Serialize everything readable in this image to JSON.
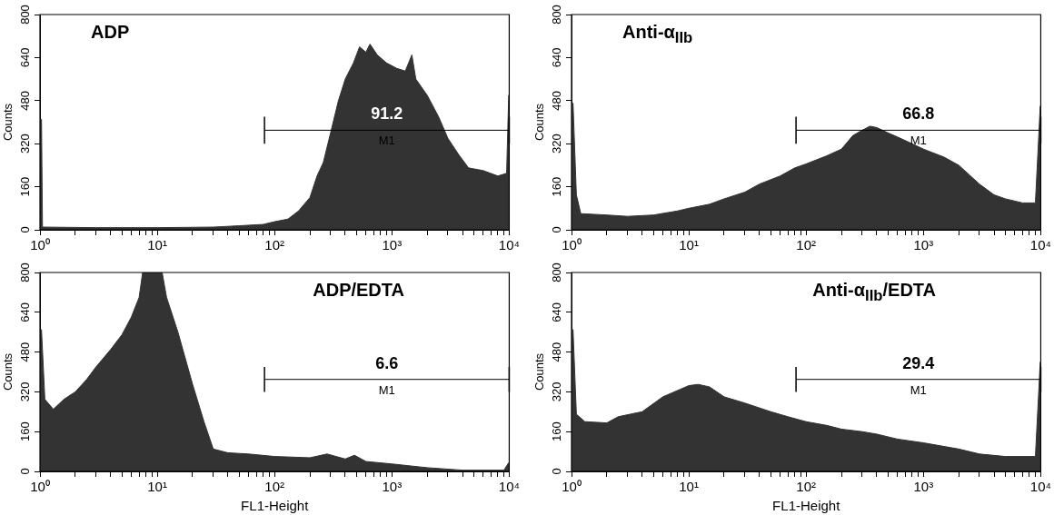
{
  "chart_data": [
    {
      "type": "area",
      "title": "ADP",
      "ylabel": "Counts",
      "log": "x",
      "xlim": [
        1,
        10000
      ],
      "ylim": [
        0,
        800
      ],
      "xticks": [
        {
          "value": 1,
          "label": "10⁰"
        },
        {
          "value": 2,
          "label": null
        },
        {
          "value": 3,
          "label": null
        },
        {
          "value": 4,
          "label": null
        },
        {
          "value": 5,
          "label": null
        },
        {
          "value": 6,
          "label": null
        },
        {
          "value": 7,
          "label": null
        },
        {
          "value": 8,
          "label": null
        },
        {
          "value": 9,
          "label": null
        },
        {
          "value": 10,
          "label": "10¹"
        },
        {
          "value": 20,
          "label": null
        },
        {
          "value": 30,
          "label": null
        },
        {
          "value": 40,
          "label": null
        },
        {
          "value": 50,
          "label": null
        },
        {
          "value": 60,
          "label": null
        },
        {
          "value": 70,
          "label": null
        },
        {
          "value": 80,
          "label": null
        },
        {
          "value": 90,
          "label": null
        },
        {
          "value": 100,
          "label": "10²"
        },
        {
          "value": 200,
          "label": null
        },
        {
          "value": 300,
          "label": null
        },
        {
          "value": 400,
          "label": null
        },
        {
          "value": 500,
          "label": null
        },
        {
          "value": 600,
          "label": null
        },
        {
          "value": 700,
          "label": null
        },
        {
          "value": 800,
          "label": null
        },
        {
          "value": 900,
          "label": null
        },
        {
          "value": 1000,
          "label": "10³"
        },
        {
          "value": 2000,
          "label": null
        },
        {
          "value": 3000,
          "label": null
        },
        {
          "value": 4000,
          "label": null
        },
        {
          "value": 5000,
          "label": null
        },
        {
          "value": 6000,
          "label": null
        },
        {
          "value": 7000,
          "label": null
        },
        {
          "value": 8000,
          "label": null
        },
        {
          "value": 9000,
          "label": null
        },
        {
          "value": 10000,
          "label": "10⁴"
        }
      ],
      "yticks": [
        0,
        160,
        320,
        480,
        640,
        800
      ],
      "series": [
        {
          "color": "#333333",
          "x": [
            1,
            1.03,
            1.05,
            3,
            10,
            30,
            50,
            80,
            100,
            130,
            160,
            200,
            230,
            260,
            300,
            350,
            400,
            470,
            530,
            600,
            650,
            750,
            900,
            1100,
            1300,
            1480,
            1600,
            2000,
            2500,
            3000,
            3700,
            4500,
            6000,
            8000,
            9500,
            9900,
            10000
          ],
          "values": [
            410,
            410,
            10,
            8,
            8,
            10,
            15,
            20,
            30,
            40,
            70,
            120,
            200,
            250,
            360,
            480,
            560,
            620,
            680,
            660,
            690,
            650,
            620,
            600,
            590,
            650,
            560,
            500,
            420,
            340,
            280,
            230,
            220,
            200,
            210,
            500,
            500
          ]
        },
        {
          "type": "line",
          "name": "M1",
          "color": "#000000",
          "x": [
            82,
            10000
          ],
          "values": [
            370,
            370
          ],
          "errors": [
            50,
            50
          ]
        }
      ],
      "annotations": [
        "91.2"
      ]
    },
    {
      "type": "area",
      "title": "Anti-α$_{IIb}$",
      "ylabel": "Counts",
      "log": "x",
      "xlim": [
        1,
        10000
      ],
      "ylim": [
        0,
        800
      ],
      "xticks": [
        {
          "value": 1,
          "label": "10⁰"
        },
        {
          "value": 2,
          "label": null
        },
        {
          "value": 3,
          "label": null
        },
        {
          "value": 4,
          "label": null
        },
        {
          "value": 5,
          "label": null
        },
        {
          "value": 6,
          "label": null
        },
        {
          "value": 7,
          "label": null
        },
        {
          "value": 8,
          "label": null
        },
        {
          "value": 9,
          "label": null
        },
        {
          "value": 10,
          "label": "10¹"
        },
        {
          "value": 20,
          "label": null
        },
        {
          "value": 30,
          "label": null
        },
        {
          "value": 40,
          "label": null
        },
        {
          "value": 50,
          "label": null
        },
        {
          "value": 60,
          "label": null
        },
        {
          "value": 70,
          "label": null
        },
        {
          "value": 80,
          "label": null
        },
        {
          "value": 90,
          "label": null
        },
        {
          "value": 100,
          "label": "10²"
        },
        {
          "value": 200,
          "label": null
        },
        {
          "value": 300,
          "label": null
        },
        {
          "value": 400,
          "label": null
        },
        {
          "value": 500,
          "label": null
        },
        {
          "value": 600,
          "label": null
        },
        {
          "value": 700,
          "label": null
        },
        {
          "value": 800,
          "label": null
        },
        {
          "value": 900,
          "label": null
        },
        {
          "value": 1000,
          "label": "10³"
        },
        {
          "value": 2000,
          "label": null
        },
        {
          "value": 3000,
          "label": null
        },
        {
          "value": 4000,
          "label": null
        },
        {
          "value": 5000,
          "label": null
        },
        {
          "value": 6000,
          "label": null
        },
        {
          "value": 7000,
          "label": null
        },
        {
          "value": 8000,
          "label": null
        },
        {
          "value": 9000,
          "label": null
        },
        {
          "value": 10000,
          "label": "10⁴"
        }
      ],
      "yticks": [
        0,
        160,
        320,
        480,
        640,
        800
      ],
      "series": [
        {
          "color": "#333333",
          "x": [
            1,
            1.03,
            1.1,
            1.2,
            2,
            3,
            5,
            8,
            10,
            15,
            20,
            30,
            40,
            60,
            80,
            100,
            150,
            200,
            250,
            300,
            350,
            400,
            500,
            600,
            800,
            1000,
            1500,
            2000,
            3000,
            4000,
            5000,
            7000,
            9000,
            9900,
            10000
          ],
          "values": [
            470,
            470,
            130,
            60,
            55,
            50,
            55,
            70,
            80,
            95,
            115,
            140,
            170,
            200,
            230,
            245,
            275,
            300,
            350,
            370,
            385,
            380,
            360,
            345,
            320,
            300,
            270,
            240,
            170,
            130,
            115,
            100,
            100,
            460,
            460
          ]
        },
        {
          "type": "line",
          "name": "M1",
          "color": "#000000",
          "x": [
            82,
            10000
          ],
          "values": [
            370,
            370
          ],
          "errors": [
            50,
            50
          ]
        }
      ],
      "annotations": [
        "66.8"
      ]
    },
    {
      "type": "area",
      "title": "ADP/EDTA",
      "xlabel": "FL1-Height",
      "ylabel": "Counts",
      "log": "x",
      "xlim": [
        1,
        10000
      ],
      "ylim": [
        0,
        800
      ],
      "xticks": [
        {
          "value": 1,
          "label": "10⁰"
        },
        {
          "value": 2,
          "label": null
        },
        {
          "value": 3,
          "label": null
        },
        {
          "value": 4,
          "label": null
        },
        {
          "value": 5,
          "label": null
        },
        {
          "value": 6,
          "label": null
        },
        {
          "value": 7,
          "label": null
        },
        {
          "value": 8,
          "label": null
        },
        {
          "value": 9,
          "label": null
        },
        {
          "value": 10,
          "label": "10¹"
        },
        {
          "value": 20,
          "label": null
        },
        {
          "value": 30,
          "label": null
        },
        {
          "value": 40,
          "label": null
        },
        {
          "value": 50,
          "label": null
        },
        {
          "value": 60,
          "label": null
        },
        {
          "value": 70,
          "label": null
        },
        {
          "value": 80,
          "label": null
        },
        {
          "value": 90,
          "label": null
        },
        {
          "value": 100,
          "label": "10²"
        },
        {
          "value": 200,
          "label": null
        },
        {
          "value": 300,
          "label": null
        },
        {
          "value": 400,
          "label": null
        },
        {
          "value": 500,
          "label": null
        },
        {
          "value": 600,
          "label": null
        },
        {
          "value": 700,
          "label": null
        },
        {
          "value": 800,
          "label": null
        },
        {
          "value": 900,
          "label": null
        },
        {
          "value": 1000,
          "label": "10³"
        },
        {
          "value": 2000,
          "label": null
        },
        {
          "value": 3000,
          "label": null
        },
        {
          "value": 4000,
          "label": null
        },
        {
          "value": 5000,
          "label": null
        },
        {
          "value": 6000,
          "label": null
        },
        {
          "value": 7000,
          "label": null
        },
        {
          "value": 8000,
          "label": null
        },
        {
          "value": 9000,
          "label": null
        },
        {
          "value": 10000,
          "label": "10⁴"
        }
      ],
      "yticks": [
        0,
        160,
        320,
        480,
        640,
        800
      ],
      "series": [
        {
          "color": "#333333",
          "x": [
            1,
            1.03,
            1.1,
            1.3,
            1.6,
            2,
            2.5,
            3,
            4,
            5,
            6,
            7,
            7.5,
            10,
            11,
            12,
            15,
            20,
            25,
            30,
            40,
            60,
            100,
            200,
            280,
            400,
            480,
            600,
            1000,
            2000,
            4000,
            9000,
            9900,
            10000
          ],
          "values": [
            570,
            570,
            290,
            250,
            290,
            320,
            370,
            420,
            490,
            550,
            620,
            700,
            800,
            800,
            800,
            700,
            560,
            350,
            200,
            90,
            75,
            70,
            60,
            55,
            70,
            50,
            65,
            40,
            30,
            15,
            5,
            5,
            35,
            35
          ]
        },
        {
          "type": "line",
          "name": "M1",
          "color": "#000000",
          "x": [
            82,
            10000
          ],
          "values": [
            370,
            370
          ],
          "errors": [
            50,
            50
          ]
        }
      ],
      "annotations": [
        "6.6"
      ]
    },
    {
      "type": "area",
      "title": "Anti-α$_{IIb}$/EDTA",
      "xlabel": "FL1-Height",
      "ylabel": "Counts",
      "log": "x",
      "xlim": [
        1,
        10000
      ],
      "ylim": [
        0,
        800
      ],
      "xticks": [
        {
          "value": 1,
          "label": "10⁰"
        },
        {
          "value": 2,
          "label": null
        },
        {
          "value": 3,
          "label": null
        },
        {
          "value": 4,
          "label": null
        },
        {
          "value": 5,
          "label": null
        },
        {
          "value": 6,
          "label": null
        },
        {
          "value": 7,
          "label": null
        },
        {
          "value": 8,
          "label": null
        },
        {
          "value": 9,
          "label": null
        },
        {
          "value": 10,
          "label": "10¹"
        },
        {
          "value": 20,
          "label": null
        },
        {
          "value": 30,
          "label": null
        },
        {
          "value": 40,
          "label": null
        },
        {
          "value": 50,
          "label": null
        },
        {
          "value": 60,
          "label": null
        },
        {
          "value": 70,
          "label": null
        },
        {
          "value": 80,
          "label": null
        },
        {
          "value": 90,
          "label": null
        },
        {
          "value": 100,
          "label": "10²"
        },
        {
          "value": 200,
          "label": null
        },
        {
          "value": 300,
          "label": null
        },
        {
          "value": 400,
          "label": null
        },
        {
          "value": 500,
          "label": null
        },
        {
          "value": 600,
          "label": null
        },
        {
          "value": 700,
          "label": null
        },
        {
          "value": 800,
          "label": null
        },
        {
          "value": 900,
          "label": null
        },
        {
          "value": 1000,
          "label": "10³"
        },
        {
          "value": 2000,
          "label": null
        },
        {
          "value": 3000,
          "label": null
        },
        {
          "value": 4000,
          "label": null
        },
        {
          "value": 5000,
          "label": null
        },
        {
          "value": 6000,
          "label": null
        },
        {
          "value": 7000,
          "label": null
        },
        {
          "value": 8000,
          "label": null
        },
        {
          "value": 9000,
          "label": null
        },
        {
          "value": 10000,
          "label": "10⁴"
        }
      ],
      "yticks": [
        0,
        160,
        320,
        480,
        640,
        800
      ],
      "series": [
        {
          "color": "#333333",
          "x": [
            1,
            1.03,
            1.1,
            1.3,
            2,
            2.5,
            4,
            6,
            10,
            12,
            15,
            20,
            30,
            50,
            70,
            100,
            150,
            200,
            300,
            400,
            600,
            1000,
            2000,
            3000,
            5000,
            9000,
            9900,
            10000
          ],
          "values": [
            570,
            570,
            230,
            200,
            195,
            220,
            240,
            300,
            345,
            350,
            340,
            300,
            275,
            240,
            220,
            200,
            185,
            170,
            160,
            150,
            130,
            115,
            90,
            70,
            60,
            60,
            440,
            440
          ]
        },
        {
          "type": "line",
          "name": "M1",
          "color": "#000000",
          "x": [
            82,
            10000
          ],
          "values": [
            370,
            370
          ],
          "errors": [
            50,
            50
          ]
        }
      ],
      "annotations": [
        "29.4"
      ]
    }
  ]
}
